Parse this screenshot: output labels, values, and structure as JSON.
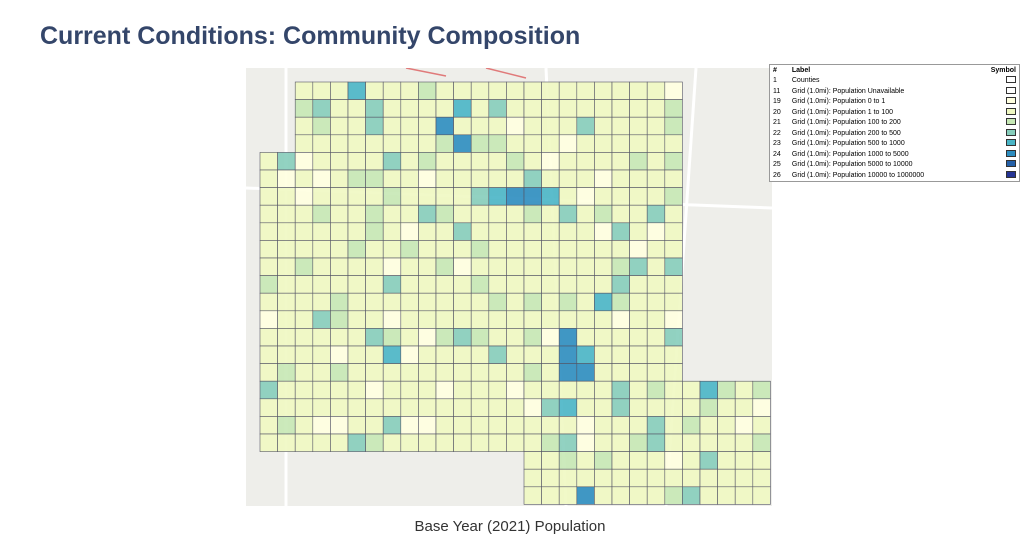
{
  "title": "Current Conditions: Community Composition",
  "caption": "Base Year (2021) Population",
  "legend": {
    "headers": [
      "#",
      "Label",
      "Symbol"
    ],
    "rows": [
      {
        "id": 1,
        "label": "Counties",
        "color": "#ffffff"
      },
      {
        "id": 11,
        "label": "Grid (1.0mi): Population Unavailable",
        "color": "#ffffff"
      },
      {
        "id": 19,
        "label": "Grid (1.0mi): Population 0 to 1",
        "color": "#ffffe0"
      },
      {
        "id": 20,
        "label": "Grid (1.0mi): Population 1 to 100",
        "color": "#eff8c2"
      },
      {
        "id": 21,
        "label": "Grid (1.0mi): Population 100 to 200",
        "color": "#c6e8b5"
      },
      {
        "id": 22,
        "label": "Grid (1.0mi): Population 200 to 500",
        "color": "#86cdbb"
      },
      {
        "id": 23,
        "label": "Grid (1.0mi): Population 500 to 1000",
        "color": "#49b5c6"
      },
      {
        "id": 24,
        "label": "Grid (1.0mi): Population 1000 to 5000",
        "color": "#2c8dc0"
      },
      {
        "id": 25,
        "label": "Grid (1.0mi): Population 5000 to 10000",
        "color": "#2460a8"
      },
      {
        "id": 26,
        "label": "Grid (1.0mi): Population 10000 to 1000000",
        "color": "#253494"
      }
    ]
  }
}
